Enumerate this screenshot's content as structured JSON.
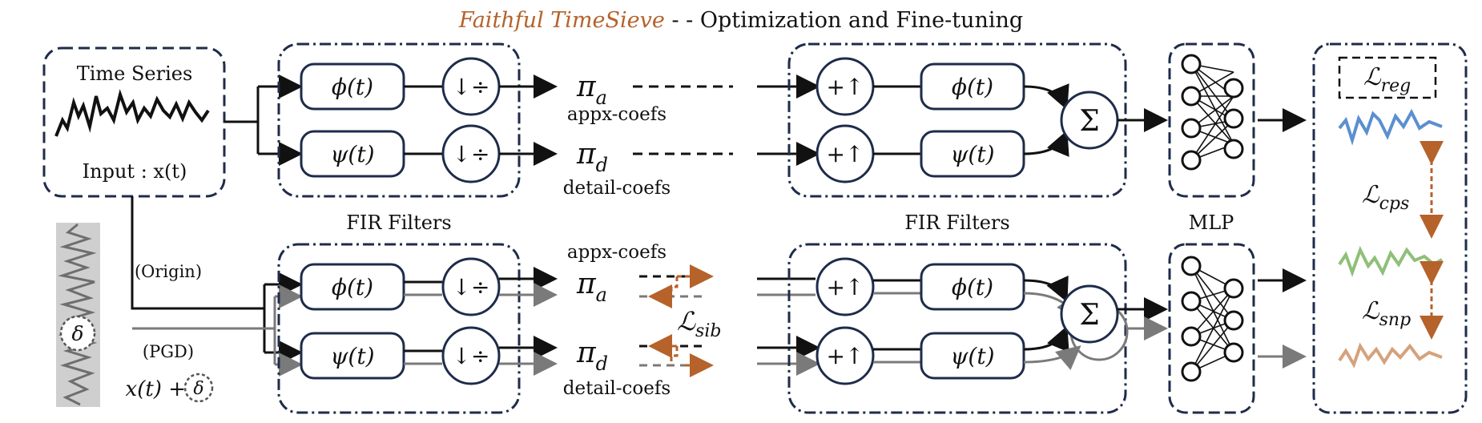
{
  "title": {
    "highlight": "Faithful TimeSieve",
    "separator": " - - ",
    "rest": "Optimization and Fine-tuning"
  },
  "colors": {
    "accent": "#b5622b",
    "frame": "#1e2c4a",
    "gray": "#7a7a7a",
    "blue": "#5b8fd0",
    "green": "#8fbf79",
    "tan": "#d4a27d"
  },
  "input": {
    "title": "Time Series",
    "label": "Input : x(t)"
  },
  "perturb": {
    "delta": "δ",
    "origin": "(Origin)",
    "pgd": "(PGD)",
    "expr": "x(t) + "
  },
  "filters": {
    "phi": "ϕ(t)",
    "psi": "ψ(t)",
    "down": "↓÷",
    "up": "+↑"
  },
  "coefs": {
    "pi_a": "π",
    "a_sub": "a",
    "pi_d": "π",
    "d_sub": "d",
    "appx": "appx-coefs",
    "detail": "detail-coefs"
  },
  "labels": {
    "fir_left": "FIR Filters",
    "fir_right": "FIR Filters",
    "mlp": "MLP",
    "sum": "Σ"
  },
  "losses": {
    "reg": "reg",
    "cps": "cps",
    "snp": "snp",
    "sib": "sib",
    "L": "ℒ"
  }
}
